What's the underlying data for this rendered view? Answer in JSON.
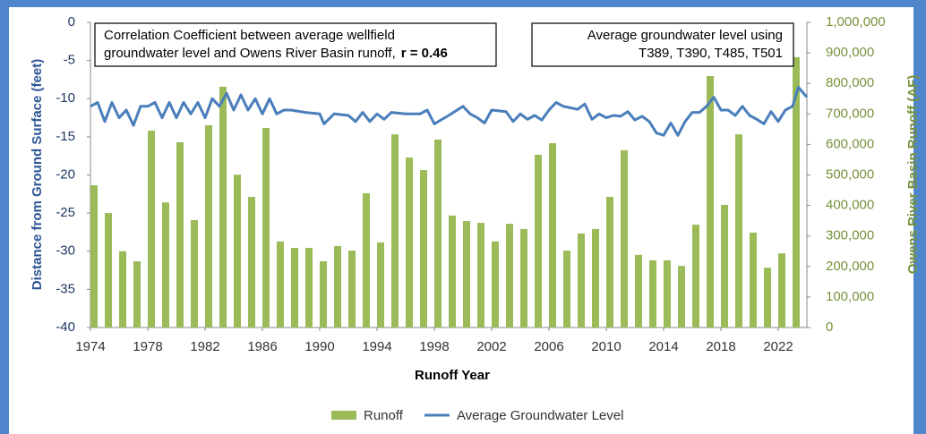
{
  "chart_data": {
    "type": "bar-line",
    "xlabel": "Runoff Year",
    "ylabel": "Distance from Ground Surface (feet)",
    "y2label": "Owens River Basin Runoff (AF)",
    "annotations": [
      {
        "lines": [
          "Correlation Coefficient between average wellfield",
          "groundwater level and Owens River Basin runoff,"
        ],
        "bold": "r = 0.46"
      },
      {
        "lines": [
          "Average groundwater level using",
          "T389, T390, T485, T501"
        ]
      }
    ],
    "xlim": [
      1974,
      2024
    ],
    "xticks": [
      1974,
      1978,
      1982,
      1986,
      1990,
      1994,
      1998,
      2002,
      2006,
      2010,
      2014,
      2018,
      2022
    ],
    "ylim": [
      -40,
      0
    ],
    "yticks": [
      0,
      -5,
      -10,
      -15,
      -20,
      -25,
      -30,
      -35,
      -40
    ],
    "y2lim": [
      0,
      1000000
    ],
    "y2ticks": [
      0,
      {
        "value": 100000,
        "label": "100,000"
      },
      {
        "value": 200000,
        "label": "200,000"
      },
      {
        "value": 300000,
        "label": "300,000"
      },
      {
        "value": 400000,
        "label": "400,000"
      },
      {
        "value": 500000,
        "label": "500,000"
      },
      {
        "value": 600000,
        "label": "600,000"
      },
      {
        "value": 700000,
        "label": "700,000"
      },
      {
        "value": 800000,
        "label": "800,000"
      },
      {
        "value": 900000,
        "label": "900,000"
      },
      {
        "value": 1000000,
        "label": "1,000,000"
      }
    ],
    "legend": "bottom",
    "series": [
      {
        "name": "Runoff",
        "type": "bar",
        "axis": "y2",
        "color": "#9bbb59",
        "x": [
          1974,
          1975,
          1976,
          1977,
          1978,
          1979,
          1980,
          1981,
          1982,
          1983,
          1984,
          1985,
          1986,
          1987,
          1988,
          1989,
          1990,
          1991,
          1992,
          1993,
          1994,
          1995,
          1996,
          1997,
          1998,
          1999,
          2000,
          2001,
          2002,
          2003,
          2004,
          2005,
          2006,
          2007,
          2008,
          2009,
          2010,
          2011,
          2012,
          2013,
          2014,
          2015,
          2016,
          2017,
          2018,
          2019,
          2020,
          2021,
          2022,
          2023
        ],
        "values": [
          466000,
          375000,
          250000,
          217000,
          645000,
          410000,
          607000,
          352000,
          663000,
          789000,
          501000,
          428000,
          654000,
          282000,
          261000,
          261000,
          217000,
          267000,
          252000,
          440000,
          279000,
          633000,
          557000,
          516000,
          616000,
          367000,
          349000,
          343000,
          282000,
          340000,
          323000,
          566000,
          604000,
          252000,
          308000,
          323000,
          428000,
          581000,
          238000,
          220000,
          220000,
          202000,
          337000,
          824000,
          402000,
          633000,
          311000,
          196000,
          243000,
          886000
        ]
      },
      {
        "name": "Average Groundwater Level",
        "type": "line",
        "axis": "y",
        "color": "#4a7ebb",
        "x": [
          1974,
          1974.5,
          1975,
          1975.5,
          1976,
          1976.5,
          1977,
          1977.5,
          1978,
          1978.5,
          1979,
          1979.5,
          1980,
          1980.5,
          1981,
          1981.5,
          1982,
          1982.5,
          1983,
          1983.5,
          1984,
          1984.5,
          1985,
          1985.5,
          1986,
          1986.5,
          1987,
          1987.5,
          1988,
          1989,
          1990,
          1990.3,
          1991,
          1992,
          1992.5,
          1993,
          1993.5,
          1994,
          1994.5,
          1995,
          1996,
          1997,
          1997.5,
          1998,
          1999,
          2000,
          2000.5,
          2001,
          2001.5,
          2002,
          2003,
          2003.5,
          2004,
          2004.5,
          2005,
          2005.5,
          2006,
          2006.5,
          2007,
          2008,
          2008.5,
          2009,
          2009.5,
          2010,
          2010.5,
          2011,
          2011.5,
          2012,
          2012.5,
          2013,
          2013.5,
          2014,
          2014.5,
          2015,
          2015.5,
          2016,
          2016.5,
          2017,
          2017.5,
          2018,
          2018.5,
          2019,
          2019.5,
          2020,
          2020.5,
          2021,
          2021.5,
          2022,
          2022.5,
          2023,
          2023.4,
          2024
        ],
        "values": [
          -11,
          -10.5,
          -13,
          -10.5,
          -12.5,
          -11.5,
          -13.5,
          -11,
          -11,
          -10.5,
          -12.5,
          -10.5,
          -12.5,
          -10.5,
          -12,
          -10.5,
          -12.5,
          -10,
          -11,
          -9.3,
          -11.5,
          -9.5,
          -11.5,
          -10,
          -12,
          -10,
          -12,
          -11.5,
          -11.5,
          -11.8,
          -12,
          -13.3,
          -12,
          -12.2,
          -13,
          -11.8,
          -13,
          -12,
          -12.7,
          -11.8,
          -12,
          -12,
          -11.5,
          -13.3,
          -12.2,
          -11,
          -12,
          -12.5,
          -13.2,
          -11.5,
          -11.7,
          -13,
          -12,
          -12.7,
          -12.2,
          -12.8,
          -11.5,
          -10.5,
          -11,
          -11.4,
          -10.7,
          -12.7,
          -12,
          -12.5,
          -12.2,
          -12.3,
          -11.7,
          -12.8,
          -12.3,
          -13,
          -14.5,
          -14.8,
          -13.2,
          -14.8,
          -13,
          -11.8,
          -11.8,
          -11,
          -9.8,
          -11.5,
          -11.5,
          -12.2,
          -11,
          -12.2,
          -12.7,
          -13.3,
          -11.7,
          -13,
          -11.5,
          -11,
          -8.5,
          -9.8
        ]
      }
    ]
  }
}
